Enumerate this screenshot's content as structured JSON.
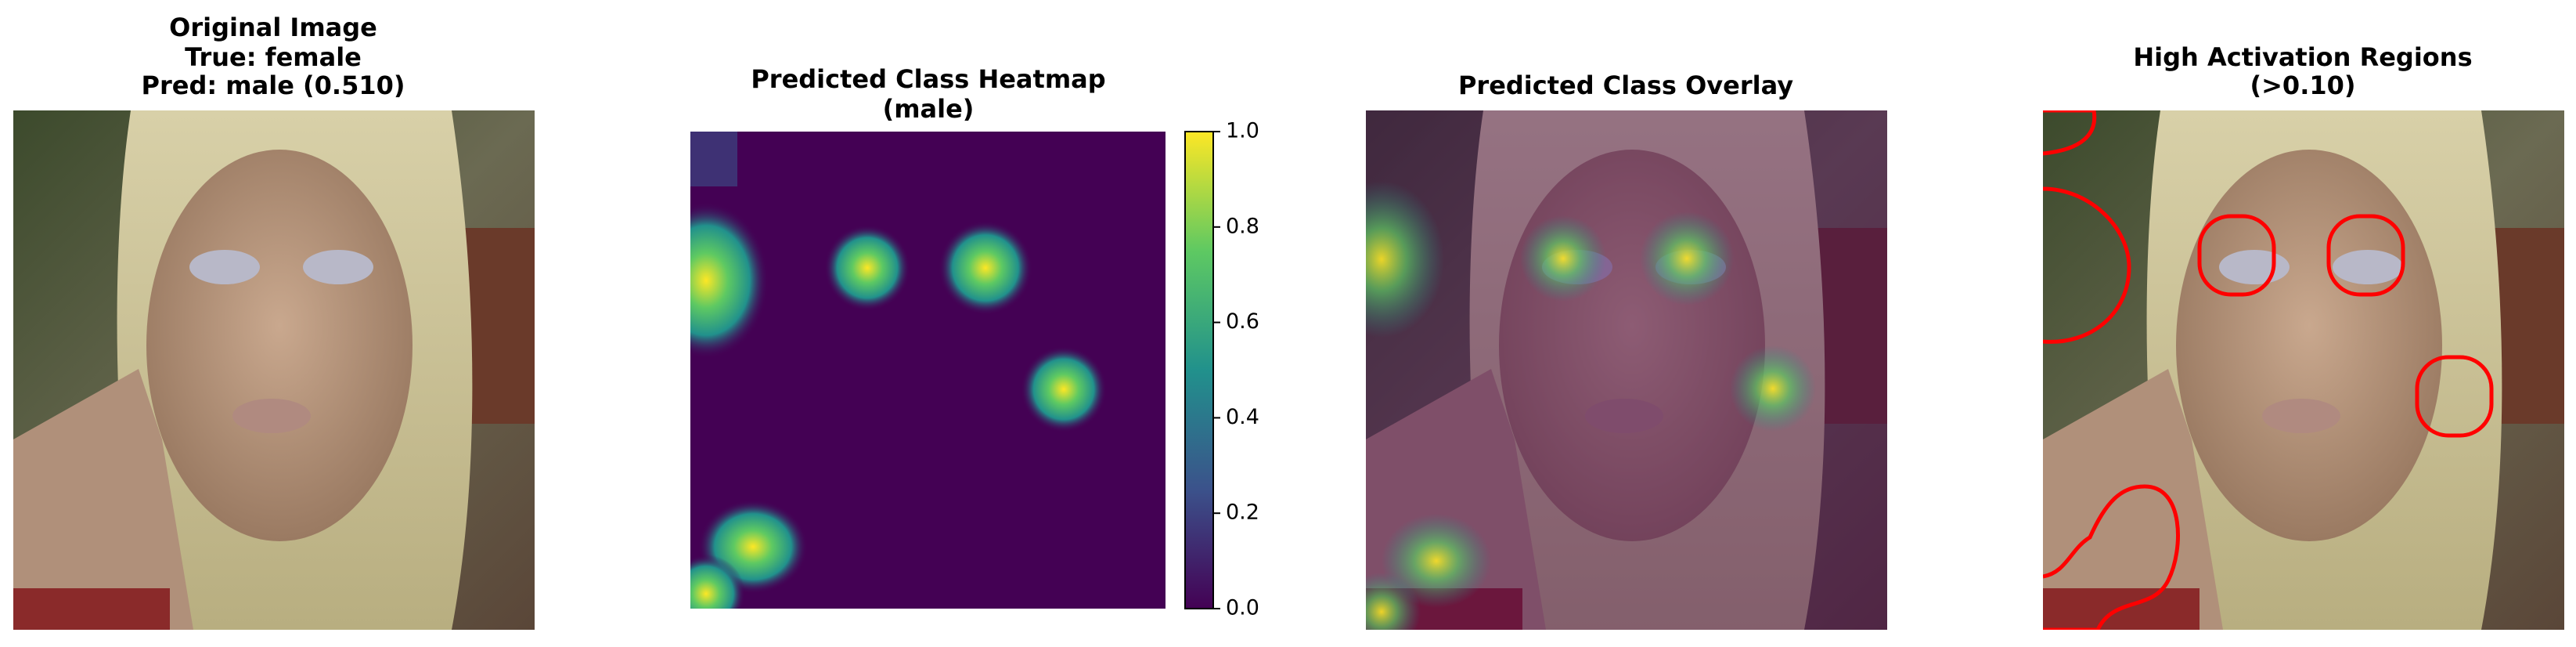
{
  "panels": [
    {
      "title": [
        "Original Image",
        "True: female",
        "Pred: male (0.510)"
      ]
    },
    {
      "title": [
        "Predicted Class Heatmap",
        "(male)"
      ]
    },
    {
      "title": [
        "Predicted Class Overlay"
      ]
    },
    {
      "title": [
        "High Activation Regions",
        "(>0.10)"
      ]
    }
  ],
  "colorbar": {
    "ylim": [
      0,
      1
    ],
    "yticks": [
      {
        "value": 0,
        "label": "0.0"
      },
      0.2,
      0.4,
      0.6,
      0.8,
      {
        "value": 1,
        "label": "1.0"
      }
    ]
  }
}
